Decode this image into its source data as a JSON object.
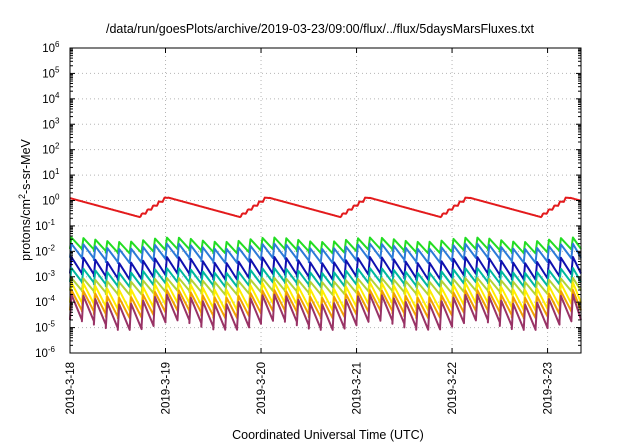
{
  "chart_data": {
    "type": "line",
    "title": "/data/run/goesPlots/archive/2019-03-23/09:00/flux/../flux/5daysMarsFluxes.txt",
    "xlabel": "Coordinated Universal Time (UTC)",
    "ylabel_parts": [
      "protons/cm",
      "2",
      "-s-sr-MeV"
    ],
    "x_ticks": [
      "2019-3-18",
      "2019-3-19",
      "2019-3-20",
      "2019-3-21",
      "2019-3-22",
      "2019-3-23"
    ],
    "xlim_days": [
      0,
      5.35
    ],
    "y_scale": "log",
    "ylim": [
      1e-06,
      1000000.0
    ],
    "y_tick_exponents": [
      -6,
      -5,
      -4,
      -3,
      -2,
      -1,
      0,
      1,
      2,
      3,
      4,
      5,
      6
    ],
    "grid": true,
    "sawtooth_period_hours": 3,
    "series": [
      {
        "color": "#e31a1c",
        "top": 1.3,
        "bottom": 0.22,
        "amp_decades": 0.12,
        "slow_decay": true
      },
      {
        "color": "#22dd22",
        "top": 0.035,
        "bottom": 0.011,
        "amp_decades": 0.45
      },
      {
        "color": "#2c7bd8",
        "top": 0.02,
        "bottom": 0.005,
        "amp_decades": 0.55
      },
      {
        "color": "#1010b0",
        "top": 0.006,
        "bottom": 0.0012,
        "amp_decades": 0.65
      },
      {
        "color": "#00b8a0",
        "top": 0.0022,
        "bottom": 0.0006,
        "amp_decades": 0.55
      },
      {
        "color": "#b3d335",
        "top": 0.0009,
        "bottom": 0.0003,
        "amp_decades": 0.5
      },
      {
        "color": "#ffee00",
        "top": 0.0006,
        "bottom": 8e-05,
        "amp_decades": 0.8
      },
      {
        "color": "#f2a000",
        "top": 0.0003,
        "bottom": 4e-05,
        "amp_decades": 0.8
      },
      {
        "color": "#993366",
        "top": 0.0002,
        "bottom": 1.5e-05,
        "amp_decades": 1.0
      }
    ]
  }
}
